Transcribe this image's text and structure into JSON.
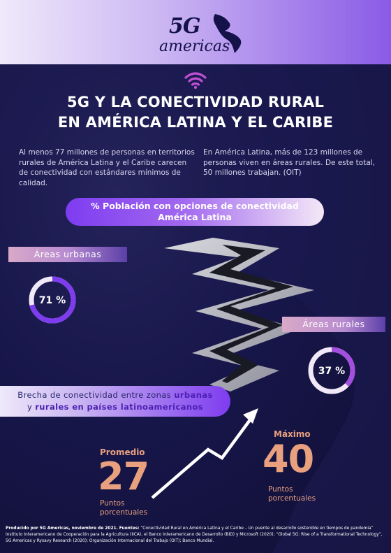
{
  "brand": {
    "logo_primary": "5G",
    "logo_secondary": "americas"
  },
  "title": {
    "line1": "5G Y LA CONECTIVIDAD RURAL",
    "line2": "EN AMÉRICA LATINA Y EL CARIBE"
  },
  "intro": {
    "left": "Al menos 77 millones de personas en territorios rurales de América Latina y el Caribe carecen de conectividad con estándares mínimos de calidad.",
    "right": "En América Latina, más de 123 millones de personas viven en áreas rurales. De este total, 50 millones trabajan. (OIT)"
  },
  "section_title": {
    "line1": "% Población con opciones de conectividad",
    "line2": "América Latina"
  },
  "urban": {
    "label": "Áreas urbanas",
    "value_text": "71 %",
    "fraction": 0.71
  },
  "rural": {
    "label": "Áreas rurales",
    "value_text": "37 %",
    "fraction": 0.37
  },
  "gap": {
    "text_prefix": "Brecha de conectividad entre zonas",
    "text_bold1": "urbanas",
    "text_mid": "y",
    "text_bold2": "rurales en países latinoamericanos"
  },
  "average": {
    "label": "Promedio",
    "value": "27",
    "unit_line1": "Puntos",
    "unit_line2": "porcentuales"
  },
  "maximum": {
    "label": "Máximo",
    "value": "40",
    "unit_line1": "Puntos",
    "unit_line2": "porcentuales"
  },
  "footer": {
    "produced": "Producido por 5G Americas, noviembre de 2021.",
    "sources_label": "Fuentes:",
    "sources": "“Conectividad Rural en América Latina y el Caribe – Un puente al desarrollo sostenible en tiempos de pandemia” Instituto Interamericano de Cooperación para la Agricultura (IICA), el Banco Interamericano de Desarrollo (BID) y Microsoft (2020); “Global 5G: Rise of a Transformational Technology”, 5G Americas y Rysavy Research (2020); Organización Internacional del Trabajo (OIT); Banco Mundial."
  },
  "colors": {
    "background": "#17164a",
    "accent_purple": "#7e3cf0",
    "accent_peach": "#e8a07f",
    "header_light": "#efe9fb"
  },
  "icons": [
    "wifi-icon",
    "trend-arrow-icon",
    "crack-graphic"
  ]
}
